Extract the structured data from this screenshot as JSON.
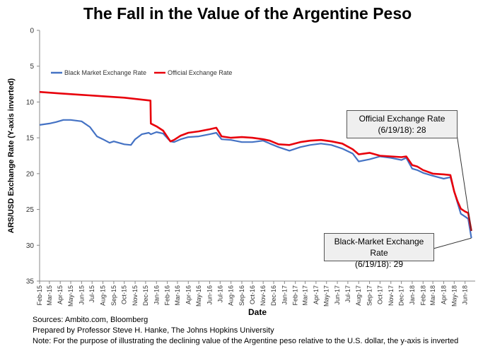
{
  "chart_data": {
    "type": "line",
    "title": "The Fall in the Value of the Argentine Peso",
    "xlabel": "Date",
    "ylabel": "ARS/USD Exchange  Rate (Y-axis inverted)",
    "ylim": [
      0,
      35
    ],
    "y_inverted": true,
    "y_ticks": [
      0,
      5,
      10,
      15,
      20,
      25,
      30,
      35
    ],
    "x_ticks": [
      "Feb-15",
      "Mar-15",
      "Apr-15",
      "May-15",
      "Jun-15",
      "Jul-15",
      "Aug-15",
      "Sep-15",
      "Oct-15",
      "Nov-15",
      "Dec-15",
      "Jan-16",
      "Feb-16",
      "Mar-16",
      "Apr-16",
      "May-16",
      "Jun-16",
      "Jul-16",
      "Aug-16",
      "Sep-16",
      "Oct-16",
      "Nov-16",
      "Dec-16",
      "Jan-17",
      "Feb-17",
      "Mar-17",
      "Apr-17",
      "May-17",
      "Jun-17",
      "Jul-17",
      "Aug-17",
      "Sep-17",
      "Oct-17",
      "Nov-17",
      "Dec-17",
      "Jan-18",
      "Feb-18",
      "Mar-18",
      "Apr-18",
      "May-18",
      "Jun-18"
    ],
    "xlim": [
      "2015-02",
      "2018-06-30"
    ],
    "legend_position": "top-left",
    "grid": false,
    "series": [
      {
        "name": "Black Market Exchange Rate",
        "color": "#4472C4",
        "x": [
          "2015-02-01",
          "2015-03-01",
          "2015-03-20",
          "2015-04-10",
          "2015-05-01",
          "2015-06-01",
          "2015-06-25",
          "2015-07-15",
          "2015-08-01",
          "2015-08-20",
          "2015-09-01",
          "2015-10-01",
          "2015-10-20",
          "2015-11-01",
          "2015-11-20",
          "2015-12-10",
          "2015-12-16",
          "2016-01-01",
          "2016-01-20",
          "2016-02-10",
          "2016-02-20",
          "2016-03-10",
          "2016-04-01",
          "2016-05-01",
          "2016-06-01",
          "2016-06-20",
          "2016-07-05",
          "2016-08-01",
          "2016-09-01",
          "2016-10-01",
          "2016-11-01",
          "2016-11-20",
          "2016-12-15",
          "2017-01-15",
          "2017-02-15",
          "2017-03-15",
          "2017-04-15",
          "2017-05-15",
          "2017-06-15",
          "2017-07-15",
          "2017-08-01",
          "2017-09-01",
          "2017-10-01",
          "2017-11-01",
          "2017-12-01",
          "2017-12-15",
          "2018-01-01",
          "2018-01-15",
          "2018-02-01",
          "2018-03-01",
          "2018-04-01",
          "2018-04-20",
          "2018-05-01",
          "2018-05-10",
          "2018-05-20",
          "2018-06-01",
          "2018-06-10",
          "2018-06-19"
        ],
        "y": [
          13.2,
          13.0,
          12.8,
          12.5,
          12.5,
          12.7,
          13.5,
          14.8,
          15.2,
          15.7,
          15.5,
          15.9,
          16.0,
          15.2,
          14.5,
          14.3,
          14.5,
          14.2,
          14.4,
          15.5,
          15.6,
          15.2,
          14.9,
          14.8,
          14.5,
          14.3,
          15.2,
          15.3,
          15.6,
          15.6,
          15.4,
          15.8,
          16.3,
          16.8,
          16.3,
          16.0,
          15.8,
          16.0,
          16.5,
          17.2,
          18.3,
          18.0,
          17.6,
          17.8,
          18.1,
          17.8,
          19.3,
          19.5,
          19.9,
          20.3,
          20.7,
          20.5,
          22.5,
          24.0,
          25.6,
          26.0,
          26.3,
          29.0
        ]
      },
      {
        "name": "Official Exchange Rate",
        "color": "#E8000B",
        "x": [
          "2015-02-01",
          "2015-04-01",
          "2015-06-01",
          "2015-08-01",
          "2015-10-01",
          "2015-12-15",
          "2015-12-16",
          "2016-01-01",
          "2016-01-20",
          "2016-02-10",
          "2016-02-20",
          "2016-03-10",
          "2016-04-01",
          "2016-05-01",
          "2016-06-01",
          "2016-06-20",
          "2016-07-05",
          "2016-08-01",
          "2016-09-01",
          "2016-10-01",
          "2016-11-01",
          "2016-11-20",
          "2016-12-15",
          "2017-01-15",
          "2017-02-15",
          "2017-03-15",
          "2017-04-15",
          "2017-05-15",
          "2017-06-15",
          "2017-07-15",
          "2017-08-01",
          "2017-09-01",
          "2017-10-01",
          "2017-11-01",
          "2017-12-01",
          "2017-12-15",
          "2018-01-01",
          "2018-01-15",
          "2018-02-01",
          "2018-03-01",
          "2018-04-01",
          "2018-04-20",
          "2018-05-01",
          "2018-05-10",
          "2018-05-20",
          "2018-06-01",
          "2018-06-10",
          "2018-06-19"
        ],
        "y": [
          8.6,
          8.8,
          9.0,
          9.2,
          9.4,
          9.8,
          13.0,
          13.4,
          14.0,
          15.5,
          15.3,
          14.7,
          14.3,
          14.1,
          13.8,
          13.6,
          14.8,
          15.0,
          14.9,
          15.0,
          15.2,
          15.4,
          15.9,
          16.0,
          15.6,
          15.4,
          15.3,
          15.5,
          15.8,
          16.6,
          17.3,
          17.1,
          17.5,
          17.6,
          17.7,
          17.6,
          18.8,
          19.0,
          19.5,
          20.0,
          20.1,
          20.2,
          22.5,
          23.8,
          24.9,
          25.3,
          25.5,
          28.0
        ]
      }
    ],
    "annotations": [
      {
        "id": "official",
        "lines": [
          "Official Exchange Rate",
          "(6/19/18): 28"
        ],
        "target_x": "2018-06-19",
        "target_y": 28.0
      },
      {
        "id": "black",
        "lines": [
          "Black-Market Exchange Rate",
          "(6/19/18): 29"
        ],
        "target_x": "2018-06-19",
        "target_y": 29.0
      }
    ]
  },
  "notes": {
    "sources": "Sources: Ambito.com, Bloomberg",
    "prepared_by": "Prepared by Professor Steve H. Hanke, The Johns Hopkins University",
    "note": "Note: For the purpose of illustrating the declining value of the Argentine peso relative to the U.S. dollar, the y-axis is inverted"
  }
}
